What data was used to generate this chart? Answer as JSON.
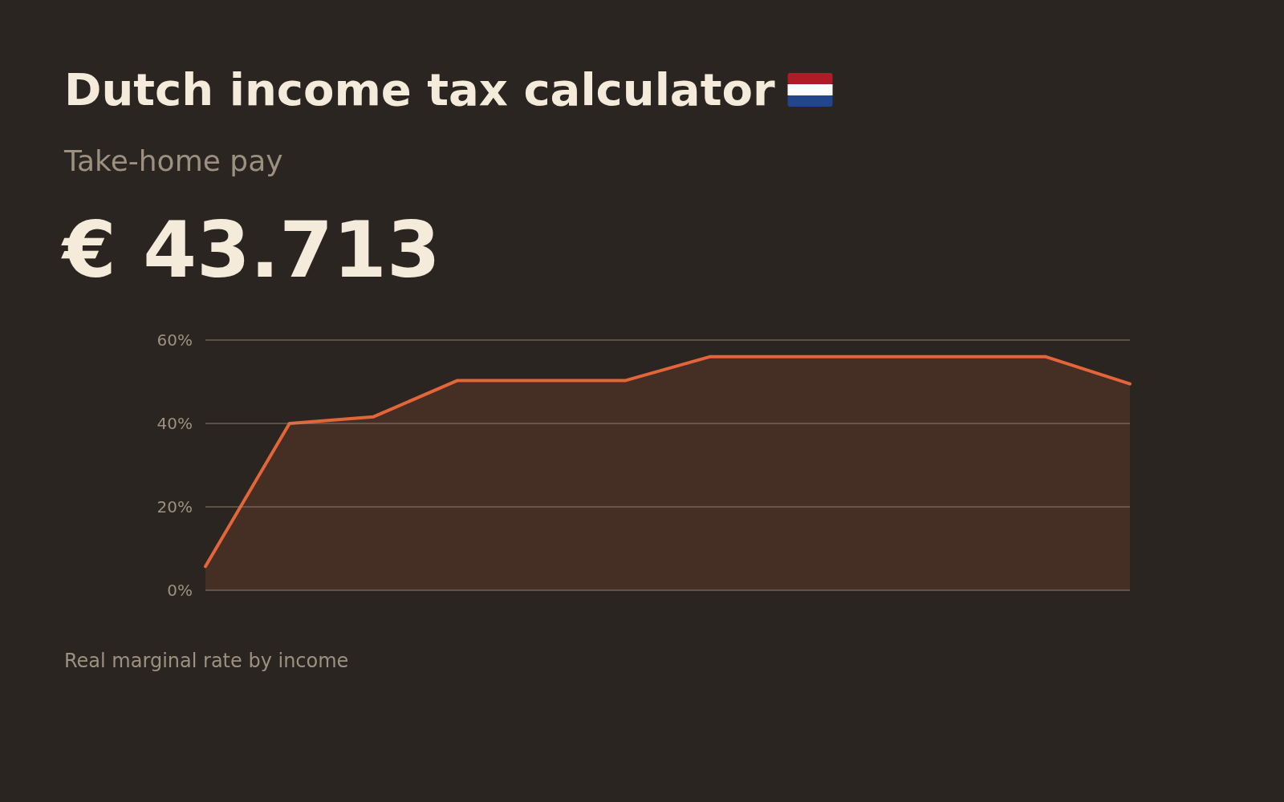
{
  "chart_data": {
    "type": "area",
    "title": "Dutch income tax calculator",
    "subtitle": "Take-home pay",
    "annotations": [
      "€ 43.713",
      "Real marginal rate by income"
    ],
    "categories": [
      null,
      null,
      null,
      null,
      null,
      null,
      null,
      null,
      null,
      null,
      null,
      null
    ],
    "series": [
      {
        "color": "#e3653a",
        "values": [
          5.7,
          40,
          41.6,
          50.3,
          50.3,
          50.3,
          56,
          56,
          56,
          56,
          56,
          49.5
        ]
      }
    ],
    "ylim": [
      0,
      60
    ],
    "yticks": [
      {
        "value": 0,
        "label": "0%"
      },
      {
        "value": 20,
        "label": "20%"
      },
      {
        "value": 40,
        "label": "40%"
      },
      {
        "value": 60,
        "label": "60%"
      }
    ],
    "grid": "y"
  }
}
